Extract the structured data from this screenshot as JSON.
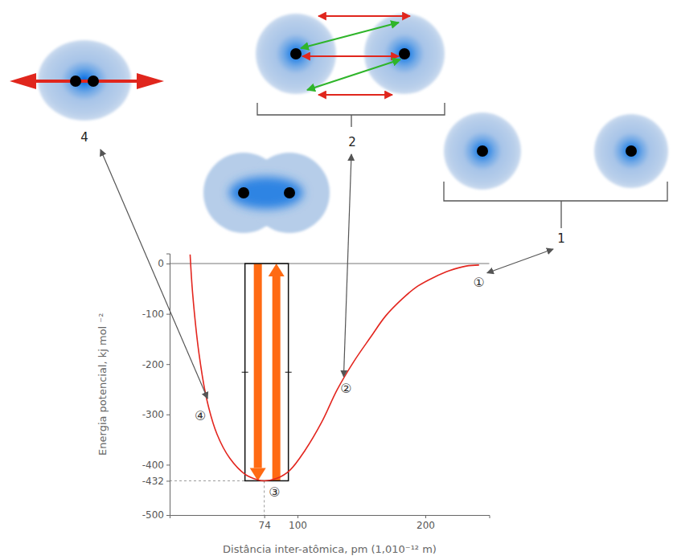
{
  "chart_data": {
    "type": "line",
    "x_label": "Distância inter-atômica, pm (1,010⁻¹² m)",
    "y_label": "Energia potencial, kj mol ⁻²",
    "x": [
      16,
      18,
      23,
      29,
      37,
      47,
      59,
      69,
      74,
      84,
      94,
      106,
      119,
      131,
      144,
      157,
      169,
      182,
      194,
      207,
      219,
      232,
      242
    ],
    "values": [
      18,
      -60,
      -180,
      -270,
      -339,
      -387,
      -419,
      -430,
      -432,
      -427,
      -411,
      -371,
      -315,
      -251,
      -195,
      -147,
      -104,
      -70,
      -45,
      -27,
      -14,
      -5,
      -3
    ],
    "color": "#e3261f",
    "xlim": [
      0,
      250
    ],
    "xticks": [
      74,
      100,
      200
    ],
    "ylim": [
      -500,
      20
    ],
    "yticks": [
      0,
      -100,
      -200,
      -300,
      -400,
      -432,
      -500
    ],
    "minimum": {
      "x": 74,
      "y": -432
    },
    "annotations": [
      {
        "text": "①",
        "x": 242,
        "y": -38,
        "callout": "1"
      },
      {
        "text": "②",
        "x": 138,
        "y": -249,
        "callout": "2"
      },
      {
        "text": "③",
        "x": 82,
        "y": -454
      },
      {
        "text": "④",
        "x": 24,
        "y": -302,
        "callout": "4"
      }
    ]
  }
}
